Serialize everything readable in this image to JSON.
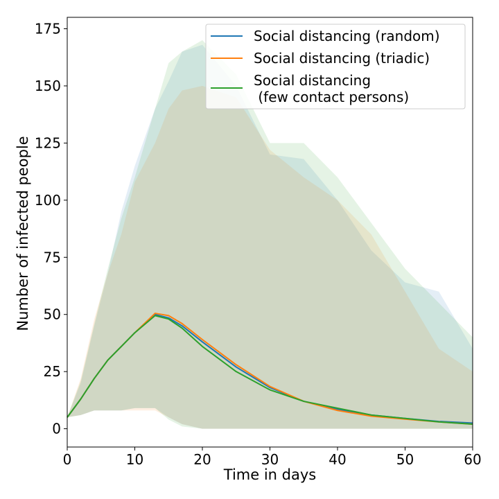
{
  "chart_data": {
    "type": "line",
    "xlabel": "Time in days",
    "ylabel": "Number of infected people",
    "xlim": [
      0,
      60
    ],
    "ylim": [
      -8,
      180
    ],
    "x_ticks": [
      0,
      10,
      20,
      30,
      40,
      50,
      60
    ],
    "y_ticks": [
      0,
      25,
      50,
      75,
      100,
      125,
      150,
      175
    ],
    "grid": false,
    "legend_position": "top-right",
    "x": [
      0,
      2,
      4,
      6,
      8,
      10,
      13,
      15,
      17,
      20,
      25,
      30,
      35,
      40,
      45,
      50,
      55,
      60
    ],
    "series": [
      {
        "name": "Social distancing (random)",
        "color": "#1f77b4",
        "values": [
          5,
          13,
          22,
          30,
          36,
          42,
          50,
          48.5,
          45,
          38,
          27,
          18,
          12,
          8.5,
          6,
          4.5,
          3.2,
          2.5
        ],
        "upper": [
          5,
          20,
          45,
          68,
          95,
          115,
          140,
          152,
          165,
          168,
          150,
          120,
          118,
          100,
          78,
          64,
          60,
          35
        ],
        "lower": [
          5,
          6,
          8,
          8,
          8,
          9,
          9,
          5,
          2,
          0,
          0,
          0,
          0,
          0,
          0,
          0,
          0,
          0
        ]
      },
      {
        "name": "Social distancing (triadic)",
        "color": "#ff7f0e",
        "values": [
          5,
          13,
          22,
          30,
          36,
          42,
          50.5,
          49.5,
          46,
          39,
          28,
          18.5,
          12,
          8,
          5.5,
          4.2,
          3,
          2
        ],
        "upper": [
          5,
          22,
          48,
          68,
          85,
          108,
          125,
          140,
          148,
          150,
          145,
          122,
          110,
          100,
          85,
          60,
          35,
          25
        ],
        "lower": [
          5,
          6,
          8,
          8,
          8,
          8,
          8,
          5,
          2,
          0,
          0,
          0,
          0,
          0,
          0,
          0,
          0,
          0
        ]
      },
      {
        "name": "Social distancing\n (few contact persons)",
        "color": "#2ca02c",
        "values": [
          5,
          13,
          22,
          30,
          36,
          42,
          49.5,
          48,
          44,
          36,
          25,
          17,
          12,
          9,
          6,
          4.5,
          3,
          2
        ],
        "upper": [
          5,
          21,
          46,
          70,
          92,
          110,
          140,
          160,
          165,
          170,
          155,
          125,
          125,
          110,
          90,
          70,
          55,
          40
        ],
        "lower": [
          5,
          6,
          8,
          8,
          8,
          9,
          9,
          4,
          1,
          0,
          0,
          0,
          0,
          0,
          0,
          0,
          0,
          0
        ]
      }
    ]
  }
}
